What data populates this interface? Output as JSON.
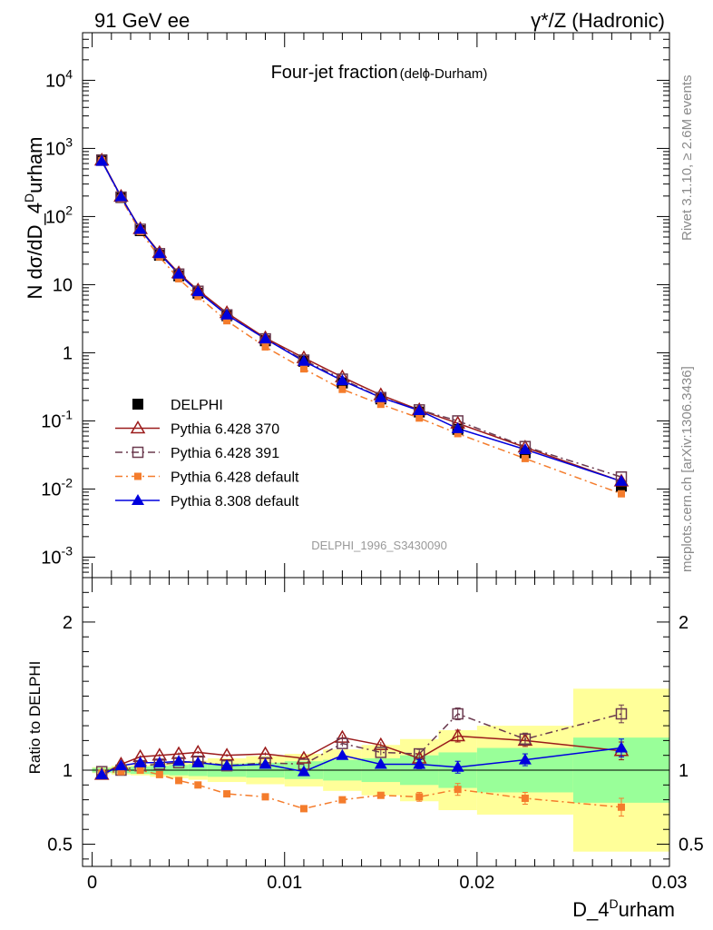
{
  "header": {
    "left": "91 GeV ee",
    "right": "γ*/Z (Hadronic)"
  },
  "side_labels": {
    "rivet": "Rivet 3.1.10, ≥ 2.6M events",
    "mcplots": "mcplots.cern.ch [arXiv:1306.3436]"
  },
  "chart_data": [
    {
      "type": "line",
      "panel": "main",
      "title": "Four-jet fraction",
      "subtitle": "(delϕ-Durham)",
      "ylabel": "N dσ/dD_4^Durham",
      "yscale": "log",
      "ylim": [
        0.0005,
        50000
      ],
      "xlim": [
        -0.0005,
        0.03
      ],
      "watermark": "DELPHI_1996_S3430090",
      "y_tick_labels": [
        "10^-3",
        "10^-2",
        "10^-1",
        "1",
        "10",
        "10^2",
        "10^3",
        "10^4"
      ],
      "legend_position": "bottom-left",
      "x": [
        0.0005,
        0.0015,
        0.0025,
        0.0035,
        0.0045,
        0.0055,
        0.007,
        0.009,
        0.011,
        0.013,
        0.015,
        0.017,
        0.019,
        0.0225,
        0.0275
      ],
      "series": [
        {
          "name": "DELPHI",
          "color": "#000000",
          "marker": "filled-square",
          "values": [
            680,
            190,
            62,
            27,
            13.5,
            7.5,
            3.5,
            1.5,
            0.75,
            0.36,
            0.21,
            0.135,
            0.075,
            0.034,
            0.011
          ]
        },
        {
          "name": "Pythia 6.428 370",
          "color": "#9b1b1b",
          "marker": "open-triangle",
          "line": "solid",
          "values": [
            670,
            197,
            66,
            29.5,
            14.8,
            8.3,
            3.85,
            1.65,
            0.84,
            0.44,
            0.24,
            0.145,
            0.092,
            0.041,
            0.013
          ]
        },
        {
          "name": "Pythia 6.428 391",
          "color": "#6b3a4f",
          "marker": "open-square",
          "line": "dashdot",
          "values": [
            670,
            193,
            65,
            28.5,
            14.3,
            8.0,
            3.6,
            1.6,
            0.78,
            0.41,
            0.22,
            0.145,
            0.1,
            0.042,
            0.015
          ]
        },
        {
          "name": "Pythia 6.428 default",
          "color": "#f47c2c",
          "marker": "filled-small-square",
          "line": "dashdot",
          "values": [
            660,
            185,
            60,
            25.5,
            12.2,
            6.7,
            2.95,
            1.22,
            0.58,
            0.29,
            0.175,
            0.11,
            0.065,
            0.028,
            0.0085
          ]
        },
        {
          "name": "Pythia 8.308 default",
          "color": "#0000dd",
          "marker": "filled-triangle",
          "line": "solid",
          "values": [
            650,
            195,
            65,
            28.5,
            14.3,
            7.9,
            3.6,
            1.6,
            0.75,
            0.39,
            0.22,
            0.142,
            0.077,
            0.038,
            0.013
          ]
        }
      ]
    },
    {
      "type": "line",
      "panel": "ratio",
      "ylabel": "Ratio to DELPHI",
      "xlabel": "D_4^Durham",
      "ylim": [
        0.35,
        2.3
      ],
      "xlim": [
        -0.0005,
        0.03
      ],
      "y_tick_labels": [
        "0.5",
        "1",
        "2"
      ],
      "x_tick_labels": [
        "0",
        "0.01",
        "0.02",
        "0.03"
      ],
      "reference_line": 1,
      "x": [
        0.0005,
        0.0015,
        0.0025,
        0.0035,
        0.0045,
        0.0055,
        0.007,
        0.009,
        0.011,
        0.013,
        0.015,
        0.017,
        0.019,
        0.0225,
        0.0275
      ],
      "bands": [
        {
          "x0": 0.0,
          "x1": 0.001,
          "inner": 0.015,
          "outer": 0.02
        },
        {
          "x0": 0.001,
          "x1": 0.002,
          "inner": 0.02,
          "outer": 0.03
        },
        {
          "x0": 0.002,
          "x1": 0.003,
          "inner": 0.025,
          "outer": 0.035
        },
        {
          "x0": 0.003,
          "x1": 0.004,
          "inner": 0.03,
          "outer": 0.045
        },
        {
          "x0": 0.004,
          "x1": 0.005,
          "inner": 0.035,
          "outer": 0.055
        },
        {
          "x0": 0.005,
          "x1": 0.006,
          "inner": 0.04,
          "outer": 0.065
        },
        {
          "x0": 0.006,
          "x1": 0.008,
          "inner": 0.045,
          "outer": 0.08
        },
        {
          "x0": 0.008,
          "x1": 0.01,
          "inner": 0.05,
          "outer": 0.095
        },
        {
          "x0": 0.01,
          "x1": 0.012,
          "inner": 0.06,
          "outer": 0.11
        },
        {
          "x0": 0.012,
          "x1": 0.014,
          "inner": 0.07,
          "outer": 0.14
        },
        {
          "x0": 0.014,
          "x1": 0.016,
          "inner": 0.08,
          "outer": 0.17
        },
        {
          "x0": 0.016,
          "x1": 0.018,
          "inner": 0.1,
          "outer": 0.21
        },
        {
          "x0": 0.018,
          "x1": 0.02,
          "inner": 0.12,
          "outer": 0.27
        },
        {
          "x0": 0.02,
          "x1": 0.025,
          "inner": 0.15,
          "outer": 0.3
        },
        {
          "x0": 0.025,
          "x1": 0.03,
          "inner": 0.22,
          "outer": 0.55
        }
      ],
      "series": [
        {
          "name": "Pythia 6.428 370",
          "color": "#9b1b1b",
          "marker": "open-triangle",
          "line": "solid",
          "values": [
            0.97,
            1.04,
            1.09,
            1.1,
            1.11,
            1.12,
            1.1,
            1.11,
            1.08,
            1.22,
            1.17,
            1.08,
            1.23,
            1.2,
            1.13
          ],
          "errors": [
            0.01,
            0.01,
            0.01,
            0.01,
            0.01,
            0.01,
            0.01,
            0.01,
            0.01,
            0.02,
            0.02,
            0.03,
            0.04,
            0.04,
            0.06
          ]
        },
        {
          "name": "Pythia 6.428 391",
          "color": "#6b3a4f",
          "marker": "open-square",
          "line": "dashdot",
          "values": [
            0.99,
            1.0,
            1.03,
            1.04,
            1.05,
            1.06,
            1.03,
            1.05,
            1.04,
            1.18,
            1.12,
            1.11,
            1.38,
            1.21,
            1.38
          ],
          "errors": [
            0.01,
            0.01,
            0.01,
            0.01,
            0.01,
            0.01,
            0.01,
            0.01,
            0.01,
            0.02,
            0.02,
            0.03,
            0.04,
            0.04,
            0.06
          ]
        },
        {
          "name": "Pythia 6.428 default",
          "color": "#f47c2c",
          "marker": "filled-small-square",
          "line": "dashdot",
          "values": [
            0.98,
            0.99,
            1.0,
            0.97,
            0.93,
            0.9,
            0.84,
            0.82,
            0.74,
            0.8,
            0.83,
            0.82,
            0.87,
            0.81,
            0.75
          ],
          "errors": [
            0.01,
            0.01,
            0.01,
            0.01,
            0.01,
            0.01,
            0.01,
            0.01,
            0.01,
            0.02,
            0.02,
            0.03,
            0.04,
            0.04,
            0.06
          ]
        },
        {
          "name": "Pythia 8.308 default",
          "color": "#0000dd",
          "marker": "filled-triangle",
          "line": "solid",
          "values": [
            0.97,
            1.03,
            1.05,
            1.05,
            1.06,
            1.05,
            1.03,
            1.04,
            0.99,
            1.1,
            1.04,
            1.04,
            1.02,
            1.07,
            1.15
          ],
          "errors": [
            0.01,
            0.01,
            0.01,
            0.01,
            0.01,
            0.01,
            0.01,
            0.01,
            0.01,
            0.02,
            0.02,
            0.03,
            0.04,
            0.04,
            0.06
          ]
        }
      ]
    }
  ]
}
